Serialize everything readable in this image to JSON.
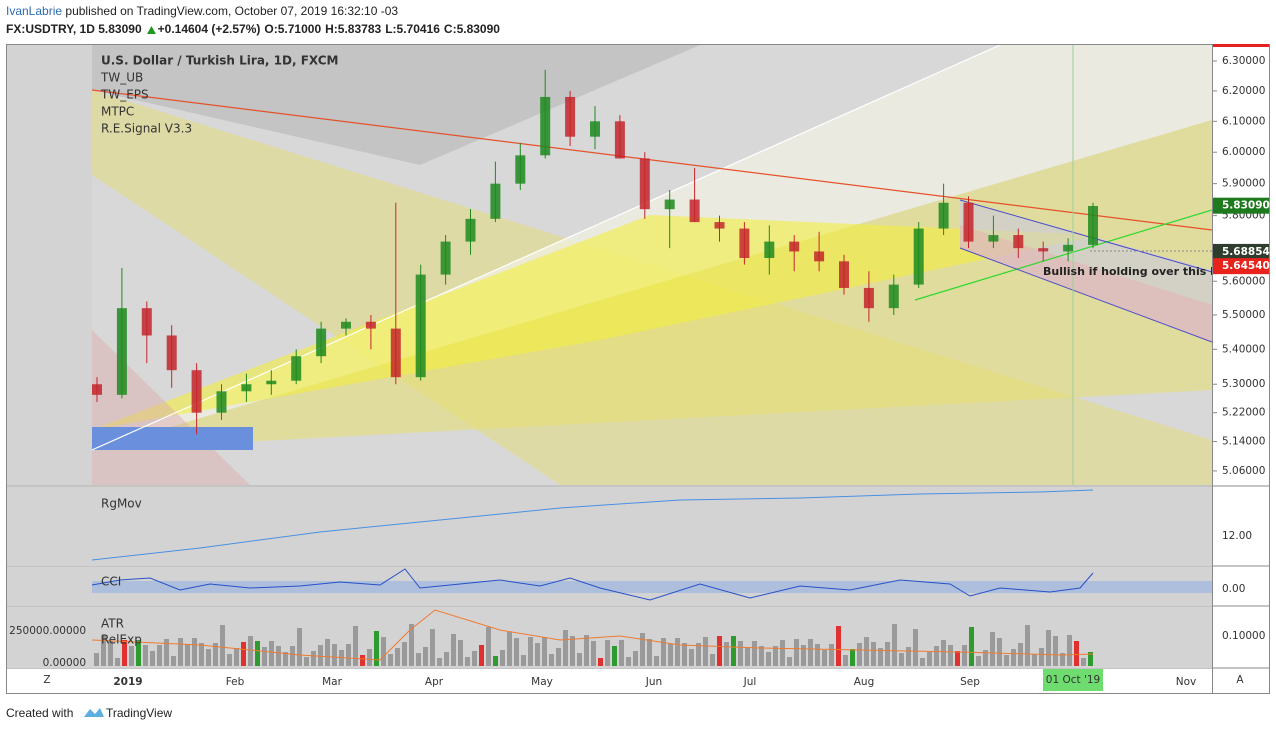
{
  "header": {
    "author": "IvanLabrie",
    "published": "published on TradingView.com, October 07, 2019 16:32:10 -03",
    "symbol": "FX:USDTRY, 1D",
    "last": "5.83090",
    "change": "+0.14604 (+2.57%)",
    "ohlc": [
      {
        "label": "O:",
        "value": "5.71000"
      },
      {
        "label": "H:",
        "value": "5.83783"
      },
      {
        "label": "L:",
        "value": "5.70416"
      },
      {
        "label": "C:",
        "value": "5.83090"
      }
    ]
  },
  "main_pane": {
    "legend": [
      "U.S. Dollar / Turkish Lira, 1D, FXCM",
      "TW_UB",
      "TW_EPS",
      "MTPC",
      "R.E.Signal V3.3"
    ],
    "annotation": "Bullish if holding over this l",
    "log_scale": true,
    "ylim": [
      5.022,
      6.354
    ],
    "yticks": [
      {
        "value": 6.3,
        "label": "6.30000"
      },
      {
        "value": 6.2,
        "label": "6.20000"
      },
      {
        "value": 6.1,
        "label": "6.10000"
      },
      {
        "value": 6.0,
        "label": "6.00000"
      },
      {
        "value": 5.9,
        "label": "5.90000"
      },
      {
        "value": 5.8,
        "label": "5.80000"
      },
      {
        "value": 5.6,
        "label": "5.60000"
      },
      {
        "value": 5.5,
        "label": "5.50000"
      },
      {
        "value": 5.4,
        "label": "5.40000"
      },
      {
        "value": 5.3,
        "label": "5.30000"
      },
      {
        "value": 5.22,
        "label": "5.22000"
      },
      {
        "value": 5.14,
        "label": "5.14000"
      },
      {
        "value": 5.06,
        "label": "5.06000"
      }
    ],
    "price_labels": [
      {
        "value": 5.8309,
        "label": "5.83090",
        "color": "#1d7a1d"
      },
      {
        "value": 5.68854,
        "label": "5.68854",
        "color": "#2f3d2f"
      },
      {
        "value": 5.6454,
        "label": "5.64540",
        "color": "#e8231b"
      }
    ],
    "up_color": "#1f8a1f",
    "down_color": "#c3262b",
    "candles": [
      [
        5.3,
        5.32,
        5.25,
        5.27
      ],
      [
        5.27,
        5.64,
        5.26,
        5.52
      ],
      [
        5.52,
        5.54,
        5.36,
        5.44
      ],
      [
        5.44,
        5.47,
        5.29,
        5.34
      ],
      [
        5.34,
        5.36,
        5.16,
        5.22
      ],
      [
        5.22,
        5.3,
        5.2,
        5.28
      ],
      [
        5.28,
        5.33,
        5.25,
        5.3
      ],
      [
        5.3,
        5.34,
        5.27,
        5.31
      ],
      [
        5.31,
        5.4,
        5.3,
        5.38
      ],
      [
        5.38,
        5.48,
        5.36,
        5.46
      ],
      [
        5.46,
        5.49,
        5.44,
        5.48
      ],
      [
        5.48,
        5.5,
        5.4,
        5.46
      ],
      [
        5.46,
        5.84,
        5.3,
        5.32
      ],
      [
        5.32,
        5.65,
        5.31,
        5.62
      ],
      [
        5.62,
        5.74,
        5.59,
        5.72
      ],
      [
        5.72,
        5.82,
        5.68,
        5.79
      ],
      [
        5.79,
        5.97,
        5.78,
        5.9
      ],
      [
        5.9,
        6.03,
        5.88,
        5.99
      ],
      [
        5.99,
        6.27,
        5.98,
        6.18
      ],
      [
        6.18,
        6.2,
        6.02,
        6.05
      ],
      [
        6.05,
        6.15,
        6.01,
        6.1
      ],
      [
        6.1,
        6.12,
        5.98,
        5.98
      ],
      [
        5.98,
        6.0,
        5.79,
        5.82
      ],
      [
        5.82,
        5.88,
        5.7,
        5.85
      ],
      [
        5.85,
        5.95,
        5.78,
        5.78
      ],
      [
        5.78,
        5.8,
        5.72,
        5.76
      ],
      [
        5.76,
        5.78,
        5.65,
        5.67
      ],
      [
        5.67,
        5.77,
        5.62,
        5.72
      ],
      [
        5.72,
        5.74,
        5.63,
        5.69
      ],
      [
        5.69,
        5.75,
        5.63,
        5.66
      ],
      [
        5.66,
        5.68,
        5.56,
        5.58
      ],
      [
        5.58,
        5.63,
        5.48,
        5.52
      ],
      [
        5.52,
        5.62,
        5.5,
        5.59
      ],
      [
        5.59,
        5.78,
        5.58,
        5.76
      ],
      [
        5.76,
        5.9,
        5.74,
        5.84
      ],
      [
        5.84,
        5.86,
        5.7,
        5.72
      ],
      [
        5.72,
        5.8,
        5.7,
        5.74
      ],
      [
        5.74,
        5.76,
        5.67,
        5.7
      ],
      [
        5.7,
        5.72,
        5.66,
        5.69
      ],
      [
        5.69,
        5.73,
        5.66,
        5.71
      ],
      [
        5.71,
        5.84,
        5.7,
        5.83
      ]
    ]
  },
  "panes": {
    "rgmov": {
      "label": "RgMov",
      "tick": "12.00"
    },
    "cci": {
      "label": "CCI",
      "tick": "0.00"
    },
    "atr": {
      "labels": [
        "ATR",
        "RelExp"
      ],
      "left_ticks": [
        "250000.00000",
        "0.00000"
      ],
      "tick": "0.10000"
    }
  },
  "time_axis": {
    "labels": [
      "2019",
      "Feb",
      "Mar",
      "Apr",
      "May",
      "Jun",
      "Jul",
      "Aug",
      "Sep",
      "Oct",
      "Nov"
    ],
    "highlight": "01 Oct '19",
    "left_button": "Z",
    "right_button": "A"
  },
  "footer": {
    "prefix": "Created with",
    "brand": "TradingView"
  }
}
